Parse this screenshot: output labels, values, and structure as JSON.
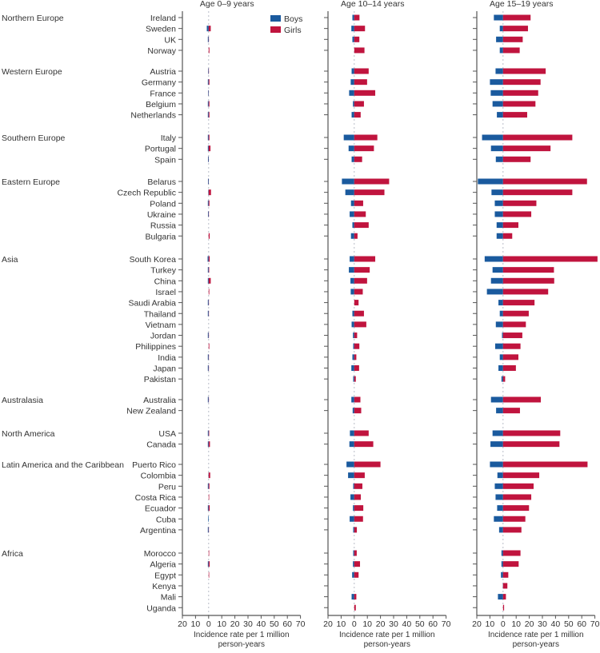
{
  "chart_data": {
    "type": "bar",
    "orientation": "horizontal-back-to-back",
    "xlabel_line1": "Incidence rate per 1 million",
    "xlabel_line2": "person-years",
    "xlim": [
      -20,
      70
    ],
    "xtick_labels": [
      "20",
      "10",
      "0",
      "10",
      "20",
      "30",
      "40",
      "50",
      "60",
      "70"
    ],
    "xticks": [
      -20,
      -10,
      0,
      10,
      20,
      30,
      40,
      50,
      60,
      70
    ],
    "legend": {
      "placement": "top-right of first panel",
      "entries": [
        "Boys",
        "Girls"
      ]
    },
    "colors": {
      "Boys": "#1a5a9e",
      "Girls": "#c0143e"
    },
    "groups": [
      {
        "name": "Northern Europe",
        "categories": [
          "Ireland",
          "Sweden",
          "UK",
          "Norway"
        ]
      },
      {
        "name": "Western Europe",
        "categories": [
          "Austria",
          "Germany",
          "France",
          "Belgium",
          "Netherlands"
        ]
      },
      {
        "name": "Southern Europe",
        "categories": [
          "Italy",
          "Portugal",
          "Spain"
        ]
      },
      {
        "name": "Eastern Europe",
        "categories": [
          "Belarus",
          "Czech Republic",
          "Poland",
          "Ukraine",
          "Russia",
          "Bulgaria"
        ]
      },
      {
        "name": "Asia",
        "categories": [
          "South Korea",
          "Turkey",
          "China",
          "Israel",
          "Saudi Arabia",
          "Thailand",
          "Vietnam",
          "Jordan",
          "Philippines",
          "India",
          "Japan",
          "Pakistan"
        ]
      },
      {
        "name": "Australasia",
        "categories": [
          "Australia",
          "New Zealand"
        ]
      },
      {
        "name": "North America",
        "categories": [
          "USA",
          "Canada"
        ]
      },
      {
        "name": "Latin America and the Caribbean",
        "categories": [
          "Puerto Rico",
          "Colombia",
          "Peru",
          "Costa Rica",
          "Ecuador",
          "Cuba",
          "Argentina"
        ]
      },
      {
        "name": "Africa",
        "categories": [
          "Morocco",
          "Algeria",
          "Egypt",
          "Kenya",
          "Mali",
          "Uganda"
        ]
      }
    ],
    "panels": [
      {
        "title": "Age 0–9 years",
        "series": [
          {
            "name": "Boys",
            "values": [
              0,
              1.4,
              0.6,
              0,
              0.4,
              0.6,
              0.4,
              0.6,
              0.6,
              0.6,
              0.6,
              0.5,
              0.5,
              0.3,
              0.6,
              0.5,
              0,
              0,
              0.8,
              0.6,
              0.6,
              0,
              0.6,
              0.6,
              0,
              0.6,
              0,
              0.6,
              0.6,
              0,
              0.6,
              0,
              0.6,
              0.6,
              0,
              0.2,
              0.6,
              0,
              0.6,
              0.4,
              0.6,
              0,
              0.6,
              0,
              0,
              0,
              0
            ]
          },
          {
            "name": "Girls",
            "values": [
              0,
              1.6,
              0.2,
              0.6,
              0.2,
              0.6,
              0.1,
              0.6,
              0.6,
              0.6,
              1.4,
              0.1,
              0.1,
              1.8,
              0.6,
              0.2,
              0,
              0.8,
              0.8,
              0.4,
              1.6,
              0.5,
              0.2,
              0.2,
              0,
              0.2,
              0.5,
              0.2,
              0.2,
              0,
              0.2,
              0,
              0.4,
              1.0,
              0,
              1.2,
              0.6,
              0.4,
              0.8,
              0,
              0.2,
              0.4,
              0.8,
              0.4,
              0,
              0,
              0
            ]
          }
        ]
      },
      {
        "title": "Age 10–14 years",
        "series": [
          {
            "name": "Boys",
            "values": [
              1.4,
              2.2,
              1.4,
              0,
              2,
              2.7,
              3.9,
              1,
              2,
              8,
              4.3,
              2,
              9.4,
              6.8,
              2.5,
              3.5,
              1.4,
              2.5,
              3.5,
              4.1,
              2.9,
              2.7,
              0,
              1.4,
              2,
              1,
              0.8,
              1.4,
              2.2,
              0.8,
              2.2,
              1.2,
              3.3,
              3.7,
              5.9,
              4.7,
              0.8,
              2.9,
              1,
              3.5,
              0.8,
              0.8,
              1,
              1.6,
              0,
              2,
              0
            ]
          },
          {
            "name": "Girls",
            "values": [
              4,
              8.2,
              3.9,
              7.8,
              11,
              9.8,
              16,
              7.4,
              4.9,
              17.6,
              15,
              6,
              26.6,
              23,
              6.8,
              8.8,
              11,
              2.5,
              16,
              11.8,
              9.8,
              6.5,
              3.3,
              7.4,
              9.2,
              2.2,
              3.9,
              1.6,
              3.7,
              1.2,
              4.7,
              5.3,
              11,
              14.5,
              20,
              8,
              6.2,
              5,
              6.9,
              6.7,
              2,
              1.9,
              4.4,
              3.3,
              0,
              1.6,
              1.2
            ]
          }
        ]
      },
      {
        "title": "Age 15–19 years",
        "series": [
          {
            "name": "Boys",
            "values": [
              7,
              2.5,
              5.3,
              2.5,
              5.7,
              10,
              9.4,
              8,
              4.7,
              16,
              9.2,
              5.5,
              19.2,
              8.8,
              6.3,
              6.3,
              4.9,
              4.9,
              14,
              8,
              9.2,
              12.3,
              3.5,
              2.5,
              5.5,
              0.8,
              6,
              2.5,
              3.5,
              1.2,
              9.2,
              5.3,
              8,
              9.6,
              10,
              4.3,
              6.3,
              5.7,
              4.5,
              7,
              3,
              1.2,
              1.2,
              1.6,
              0.2,
              3.9,
              0
            ]
          },
          {
            "name": "Girls",
            "values": [
              21,
              19,
              15,
              12.7,
              32.5,
              28.6,
              26.8,
              24.7,
              18.4,
              52.8,
              36.2,
              21,
              64,
              52.8,
              25.4,
              21.5,
              11.7,
              7,
              72,
              38.8,
              39,
              34.4,
              24,
              19.6,
              17.4,
              14.7,
              13.3,
              11.7,
              9.8,
              1.6,
              28.8,
              12.9,
              43.6,
              43,
              64.4,
              27.6,
              23.3,
              21.5,
              19.8,
              17,
              14,
              13.3,
              11.9,
              4,
              3.3,
              2.2,
              0.8
            ]
          }
        ]
      }
    ]
  }
}
